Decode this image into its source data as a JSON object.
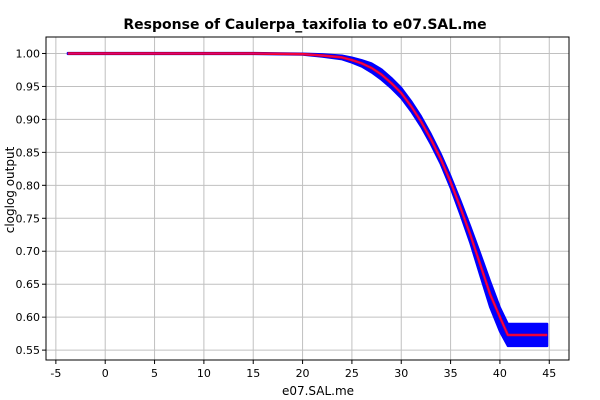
{
  "chart_data": {
    "type": "line",
    "title": "Response of Caulerpa_taxifolia to e07.SAL.me",
    "xlabel": "e07.SAL.me",
    "ylabel": "cloglog output",
    "xlim": [
      -6,
      47
    ],
    "ylim": [
      0.535,
      1.025
    ],
    "xticks": [
      -5,
      0,
      5,
      10,
      15,
      20,
      25,
      30,
      35,
      40,
      45
    ],
    "yticks": [
      0.55,
      0.6,
      0.65,
      0.7,
      0.75,
      0.8,
      0.85,
      0.9,
      0.95,
      1.0
    ],
    "grid": true,
    "series": [
      {
        "role": "mean",
        "color": "#ff0000",
        "x": [
          -3.8,
          0,
          5,
          10,
          15,
          20,
          22,
          24,
          25,
          26,
          27,
          28,
          29,
          30,
          31,
          32,
          33,
          34,
          35,
          36,
          37,
          38,
          39,
          40,
          40.8,
          42,
          43,
          44,
          44.8
        ],
        "y": [
          1.0,
          1.0,
          1.0,
          1.0,
          1.0,
          0.999,
          0.997,
          0.994,
          0.99,
          0.985,
          0.978,
          0.968,
          0.955,
          0.94,
          0.92,
          0.897,
          0.87,
          0.84,
          0.805,
          0.766,
          0.725,
          0.68,
          0.635,
          0.6,
          0.573,
          0.573,
          0.573,
          0.573,
          0.573
        ]
      },
      {
        "role": "band-upper",
        "color": "#0000ff",
        "x": [
          -3.8,
          0,
          5,
          10,
          15,
          20,
          22,
          24,
          25,
          26,
          27,
          28,
          29,
          30,
          31,
          32,
          33,
          34,
          35,
          36,
          37,
          38,
          39,
          40,
          40.8,
          42,
          43,
          44,
          44.8
        ],
        "y": [
          1.001,
          1.001,
          1.001,
          1.001,
          1.001,
          1.0,
          0.999,
          0.997,
          0.994,
          0.99,
          0.985,
          0.976,
          0.963,
          0.948,
          0.928,
          0.905,
          0.878,
          0.848,
          0.814,
          0.777,
          0.738,
          0.697,
          0.655,
          0.615,
          0.59,
          0.59,
          0.59,
          0.59,
          0.59
        ]
      },
      {
        "role": "band-lower",
        "color": "#0000ff",
        "x": [
          -3.8,
          0,
          5,
          10,
          15,
          20,
          22,
          24,
          25,
          26,
          27,
          28,
          29,
          30,
          31,
          32,
          33,
          34,
          35,
          36,
          37,
          38,
          39,
          40,
          40.8,
          42,
          43,
          44,
          44.8
        ],
        "y": [
          0.999,
          0.999,
          0.999,
          0.999,
          0.999,
          0.998,
          0.995,
          0.991,
          0.986,
          0.98,
          0.971,
          0.96,
          0.947,
          0.932,
          0.912,
          0.889,
          0.862,
          0.832,
          0.796,
          0.755,
          0.712,
          0.663,
          0.615,
          0.578,
          0.556,
          0.556,
          0.556,
          0.556,
          0.556
        ]
      }
    ],
    "colors": {
      "background": "#ffffff",
      "plot_border": "#000000",
      "grid": "#c0c0c0",
      "band": "#0000ff",
      "mean": "#ff0000",
      "mean_overlay": "#cc00cc"
    }
  }
}
